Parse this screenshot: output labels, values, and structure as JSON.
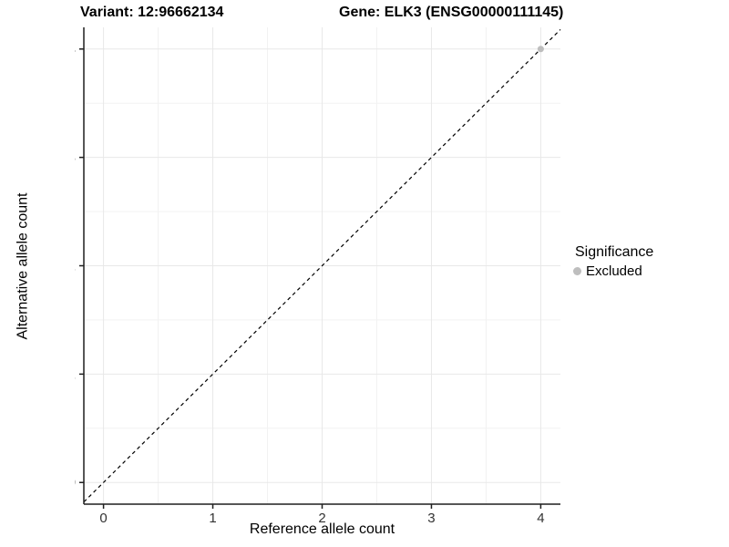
{
  "header": {
    "variant_title": "Variant: 12:96662134",
    "gene_title": "Gene: ELK3 (ENSG00000111145)"
  },
  "axes": {
    "x_label": "Reference allele count",
    "y_label": "Alternative allele count"
  },
  "legend": {
    "title": "Significance",
    "items": [
      {
        "label": "Excluded",
        "color": "#bebebe"
      }
    ]
  },
  "colors": {
    "background": "#ffffff",
    "axis": "#1f1f1f",
    "tick_label": "#333333",
    "grid_major": "#e8e8e8",
    "grid_minor": "#f2f2f2",
    "reference_line": "#000000",
    "point": "#bebebe"
  },
  "chart_data": {
    "type": "scatter",
    "title": "Variant: 12:96662134 | Gene: ELK3 (ENSG00000111145)",
    "xlabel": "Reference allele count",
    "ylabel": "Alternative allele count",
    "xlim": [
      -0.18,
      4.18
    ],
    "ylim": [
      -0.2,
      4.2
    ],
    "xticks": [
      0,
      1,
      2,
      3,
      4
    ],
    "yticks": [
      0,
      1,
      2,
      3,
      4
    ],
    "x_minor": [
      0.5,
      1.5,
      2.5,
      3.5
    ],
    "y_minor": [
      0.5,
      1.5,
      2.5,
      3.5
    ],
    "grid": "major+minor",
    "legend_position": "right",
    "reference_line": {
      "style": "dashed",
      "meaning": "y = x identity line",
      "from": [
        -0.18,
        -0.18
      ],
      "to": [
        4.18,
        4.18
      ]
    },
    "series": [
      {
        "name": "Excluded",
        "color": "#bebebe",
        "points": [
          [
            4,
            4
          ]
        ]
      }
    ]
  }
}
